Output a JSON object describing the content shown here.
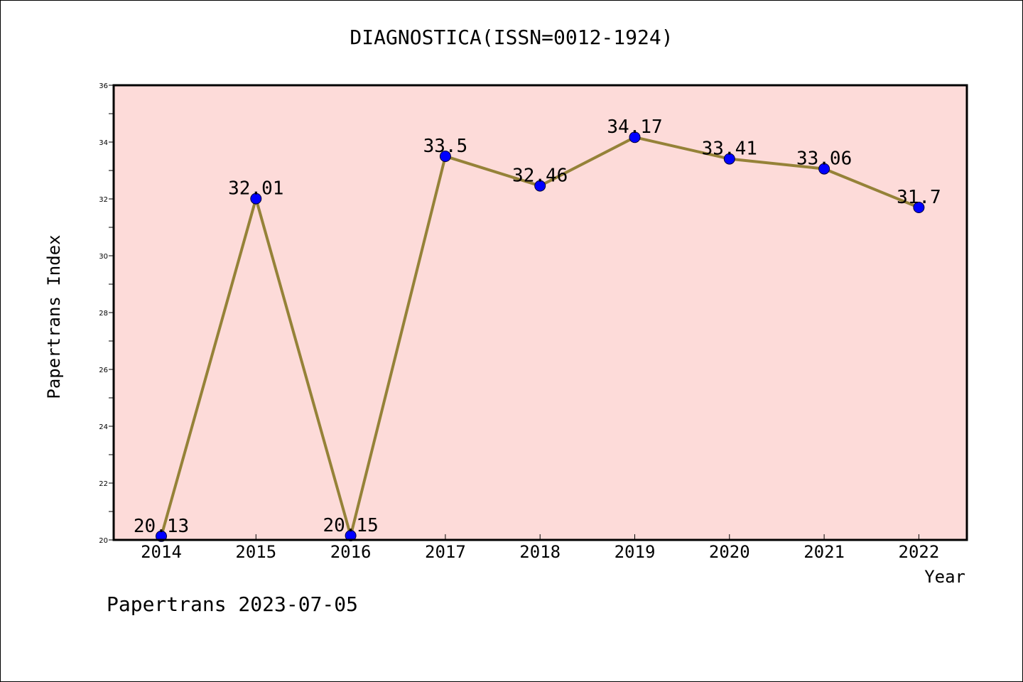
{
  "chart_data": {
    "type": "line",
    "title": "DIAGNOSTICA(ISSN=0012-1924)",
    "xlabel": "Year",
    "ylabel": "Papertrans Index",
    "footer": "Papertrans 2023-07-05",
    "categories": [
      "2014",
      "2015",
      "2016",
      "2017",
      "2018",
      "2019",
      "2020",
      "2021",
      "2022"
    ],
    "values": [
      20.13,
      32.01,
      20.15,
      33.5,
      32.46,
      34.17,
      33.41,
      33.06,
      31.7
    ],
    "data_labels": [
      "20.13",
      "32.01",
      "20.15",
      "33.5",
      "32.46",
      "34.17",
      "33.41",
      "33.06",
      "31.7"
    ],
    "ylim": [
      20,
      36
    ],
    "yticks": [
      "20",
      "22",
      "24",
      "26",
      "28",
      "30",
      "32",
      "34",
      "36"
    ],
    "grid": false,
    "colors": {
      "plot_background": "#fddbd9",
      "line": "#958238",
      "marker": "#0000ff"
    }
  }
}
